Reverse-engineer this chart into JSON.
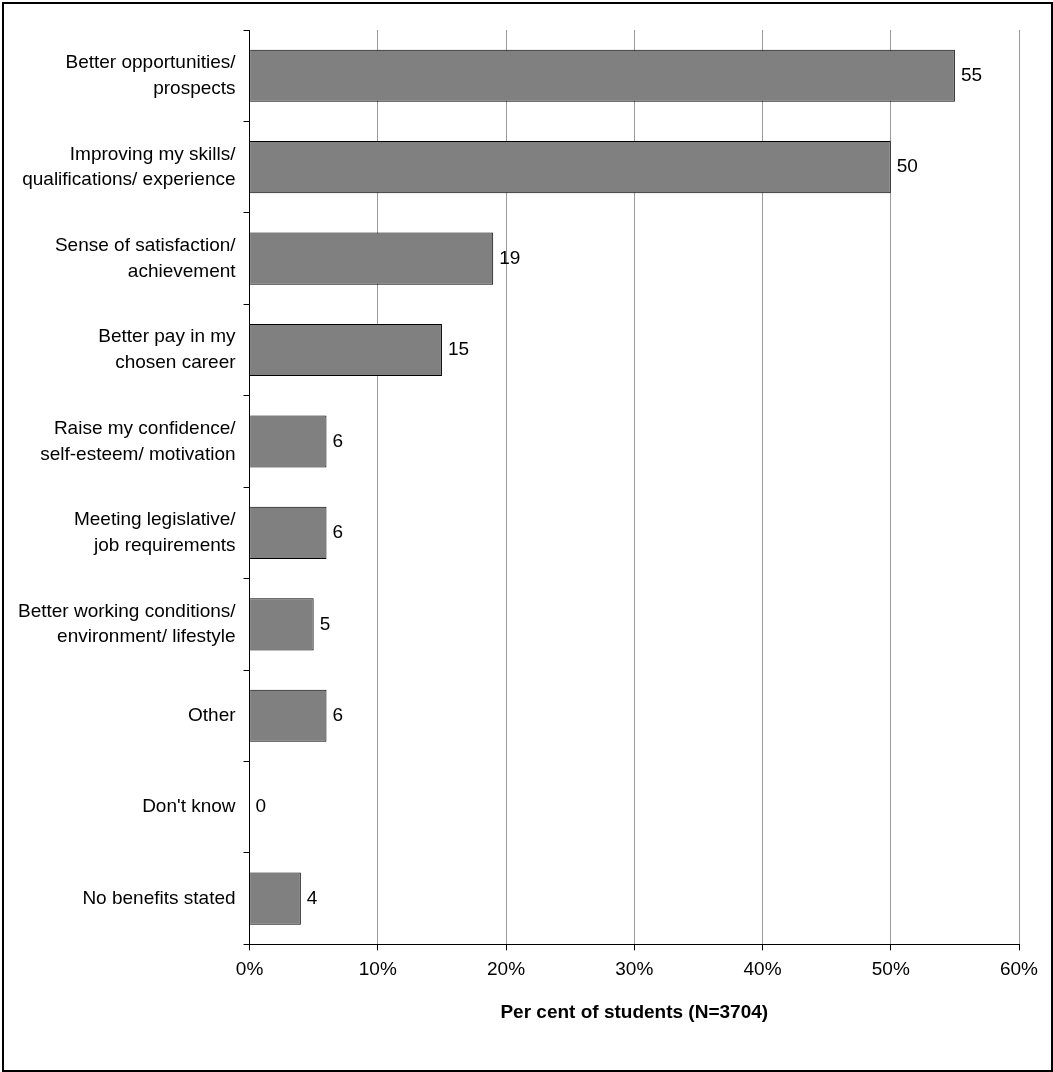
{
  "chart_data": {
    "type": "bar",
    "orientation": "horizontal",
    "categories": [
      "Better opportunities/ prospects",
      "Improving my skills/ qualifications/ experience",
      "Sense of satisfaction/ achievement",
      "Better pay in my chosen career",
      "Raise my confidence/ self-esteem/ motivation",
      "Meeting legislative/ job requirements",
      "Better working conditions/ environment/ lifestyle",
      "Other",
      "Don't know",
      "No benefits stated"
    ],
    "values": [
      55,
      50,
      19,
      15,
      6,
      6,
      5,
      6,
      0,
      4
    ],
    "color": "#808080",
    "data_labels": true,
    "xlim": [
      0,
      60
    ],
    "xticks": [
      {
        "value": 0,
        "label": "0%"
      },
      {
        "value": 10,
        "label": "10%"
      },
      {
        "value": 20,
        "label": "20%"
      },
      {
        "value": 30,
        "label": "30%"
      },
      {
        "value": 40,
        "label": "40%"
      },
      {
        "value": 50,
        "label": "50%"
      },
      {
        "value": 60,
        "label": "60%"
      }
    ],
    "xlabel": "Per cent of students (N=3704)",
    "grid": "x",
    "legend": false
  }
}
